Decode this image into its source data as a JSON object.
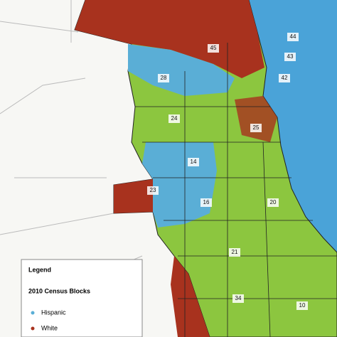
{
  "legend": {
    "title": "Legend",
    "subtitle": "2010 Census Blocks",
    "items": [
      {
        "label": "Hispanic",
        "color": "#5aaed6"
      },
      {
        "label": "White",
        "color": "#a8321e"
      }
    ]
  },
  "ward_labels": [
    "45",
    "44",
    "43",
    "42",
    "24",
    "23",
    "20",
    "21",
    "34",
    "10",
    "16",
    "14",
    "25",
    "28"
  ]
}
